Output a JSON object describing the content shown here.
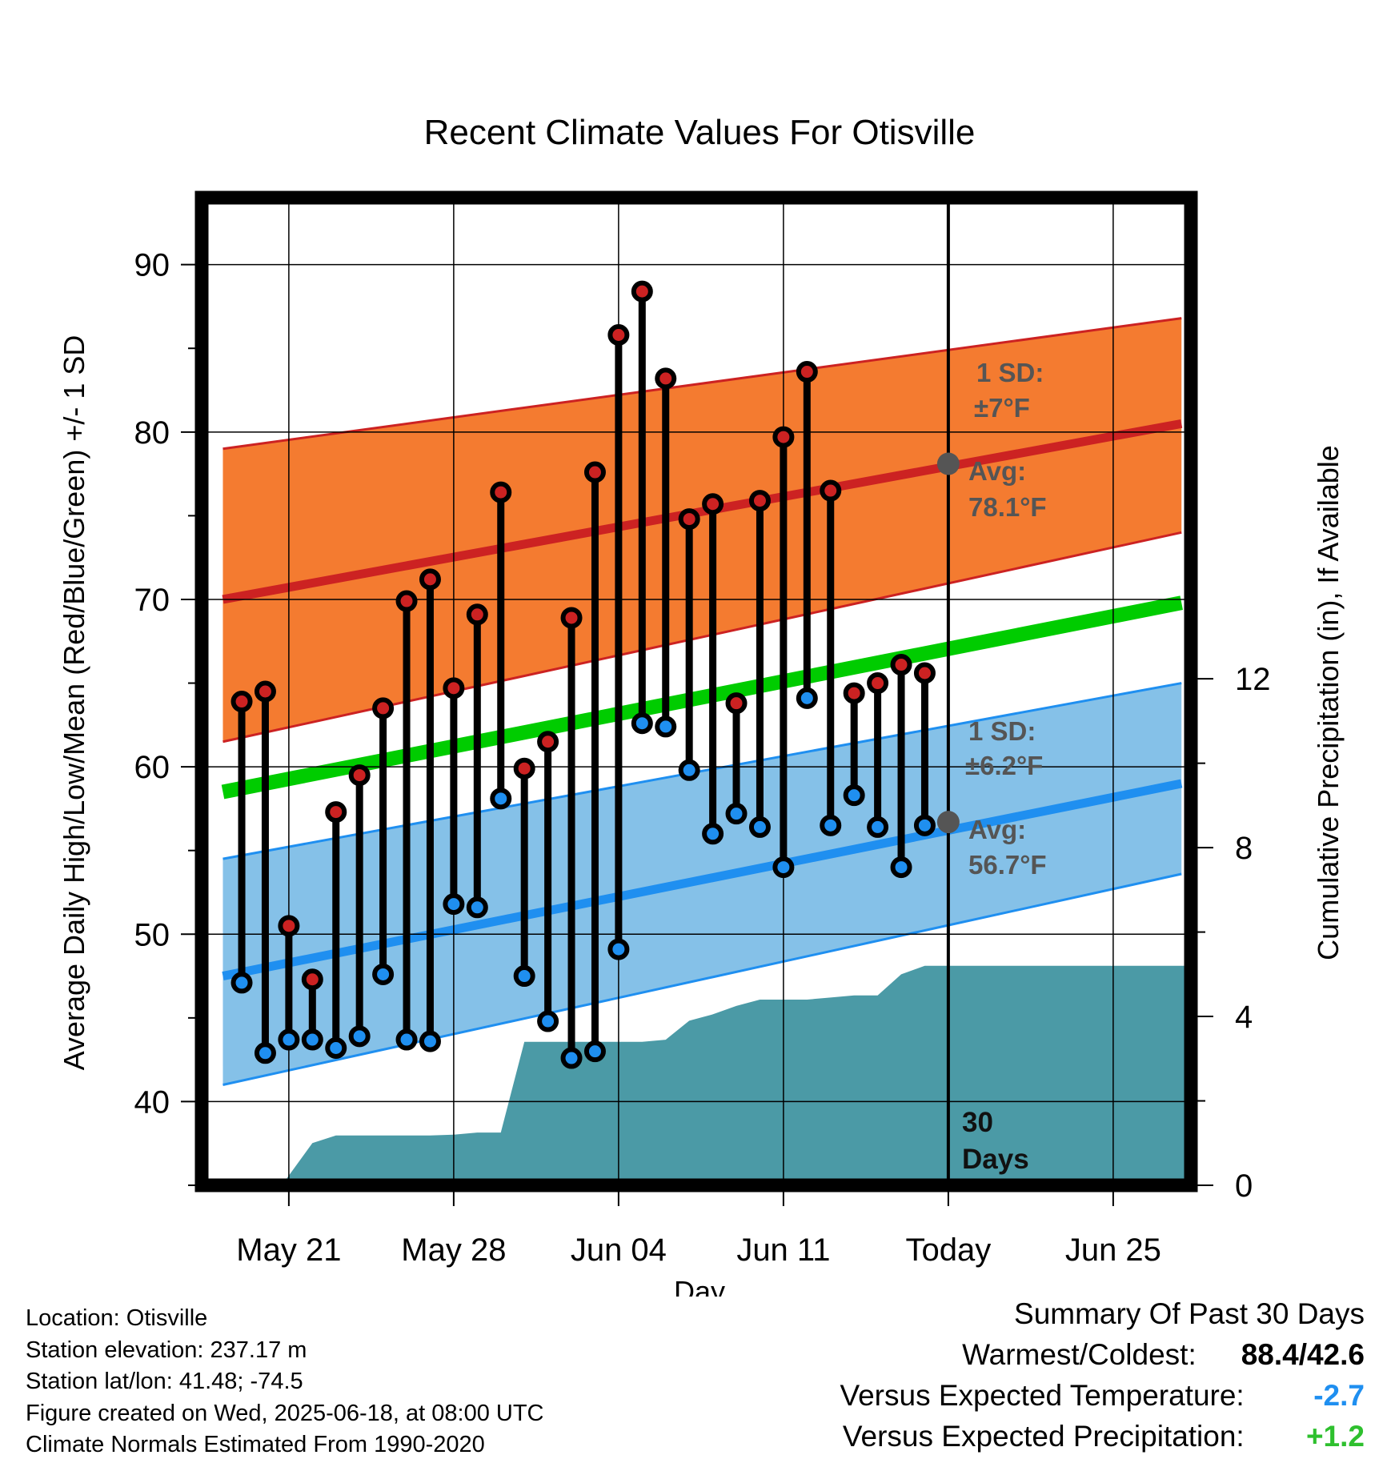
{
  "chart_data": {
    "type": "line",
    "title": "Recent Climate Values For Otisville",
    "xlabel": "Day",
    "ylabel": "Average Daily High/Low/Mean (Red/Blue/Green) +/- 1 SD",
    "ylabel_right": "Cumulative Precipitation (in), If Available",
    "xlim": [
      -3.7,
      38.3
    ],
    "ylim": [
      35,
      94
    ],
    "ylim_right": [
      0,
      23.4
    ],
    "yticks": [
      "40",
      "50",
      "60",
      "70",
      "80",
      "90"
    ],
    "yticks_right": [
      "0",
      "4",
      "8",
      "12"
    ],
    "xtick_labels": [
      {
        "x": 0,
        "label": "May 21"
      },
      {
        "x": 7,
        "label": "May 28"
      },
      {
        "x": 14,
        "label": "Jun 04"
      },
      {
        "x": 21,
        "label": "Jun 11"
      },
      {
        "x": 28,
        "label": "Today"
      },
      {
        "x": 35,
        "label": "Jun 25"
      }
    ],
    "grid": true,
    "today_x": 28,
    "normals": {
      "x": [
        -2.8,
        37.9
      ],
      "avg_high": [
        70.0,
        80.5
      ],
      "high_upper": [
        79.0,
        86.8
      ],
      "high_lower": [
        61.5,
        74.0
      ],
      "avg_mean": [
        58.5,
        69.8
      ],
      "avg_low": [
        47.5,
        59.0
      ],
      "low_upper": [
        54.5,
        65.0
      ],
      "low_lower": [
        41.0,
        53.6
      ]
    },
    "days": [
      -2,
      -1,
      0,
      1,
      2,
      3,
      4,
      5,
      6,
      7,
      8,
      9,
      10,
      11,
      12,
      13,
      14,
      15,
      16,
      17,
      18,
      19,
      20,
      21,
      22,
      23,
      24,
      25,
      26,
      27
    ],
    "highs": [
      63.9,
      64.5,
      50.5,
      47.3,
      57.3,
      59.5,
      63.5,
      69.9,
      71.2,
      64.7,
      69.1,
      76.4,
      59.9,
      61.5,
      68.9,
      77.6,
      85.8,
      88.4,
      83.2,
      74.8,
      75.7,
      63.8,
      75.9,
      79.7,
      83.6,
      76.5,
      64.4,
      65.0,
      66.1,
      65.6
    ],
    "lows": [
      47.1,
      42.9,
      43.7,
      43.7,
      43.2,
      43.9,
      47.6,
      43.7,
      43.6,
      51.8,
      51.6,
      58.1,
      47.5,
      44.8,
      42.6,
      43.0,
      49.1,
      62.6,
      62.4,
      59.8,
      56.0,
      57.2,
      56.4,
      54.0,
      64.1,
      56.5,
      58.3,
      56.4,
      54.0,
      56.5
    ],
    "precip": {
      "x": [
        -0.3,
        1,
        2,
        3,
        4,
        5,
        6,
        7,
        8,
        9,
        10,
        11,
        12,
        13,
        14,
        15,
        16,
        17,
        18,
        19,
        20,
        21,
        22,
        23,
        24,
        25,
        26,
        27,
        28,
        38.3
      ],
      "values": [
        0,
        1.0,
        1.18,
        1.18,
        1.18,
        1.18,
        1.18,
        1.2,
        1.25,
        1.25,
        3.4,
        3.4,
        3.4,
        3.4,
        3.4,
        3.4,
        3.45,
        3.9,
        4.05,
        4.25,
        4.4,
        4.4,
        4.4,
        4.45,
        4.5,
        4.5,
        5.0,
        5.2,
        5.2,
        5.2
      ]
    },
    "series": [
      {
        "name": "High",
        "color": "#cc2222"
      },
      {
        "name": "Low",
        "color": "#1f8ff0"
      },
      {
        "name": "Mean",
        "color": "#00cc00"
      }
    ],
    "colors": {
      "high_band": "#f47b30",
      "low_band": "#85c1e8",
      "precip_fill": "#4b9aa6"
    },
    "annotations": {
      "high_sd_label": "1 SD:",
      "high_sd_value": "±7°F",
      "high_avg_label": "Avg:",
      "high_avg_value": "78.1°F",
      "low_sd_label": "1 SD:",
      "low_sd_value": "±6.2°F",
      "low_avg_label": "Avg:",
      "low_avg_value": "56.7°F",
      "days_count": "30",
      "days_word": "Days",
      "avg_high_today": 78.1,
      "avg_low_today": 56.7
    }
  },
  "station_info": [
    "Location: Otisville",
    "Station elevation: 237.17 m",
    "Station lat/lon: 41.48; -74.5",
    "Figure created on Wed, 2025-06-18, at 08:00 UTC",
    "Climate Normals Estimated From 1990-2020"
  ],
  "summary": {
    "heading": "Summary Of Past 30 Days",
    "warmest_coldest_label": "Warmest/Coldest:",
    "warmest_coldest_value": "88.4/42.6",
    "temp_label": "Versus Expected Temperature:",
    "temp_value": "-2.7",
    "temp_color": "#1f8ff0",
    "precip_label": "Versus Expected Precipitation:",
    "precip_value": "+1.2",
    "precip_color": "#2ec02e"
  }
}
